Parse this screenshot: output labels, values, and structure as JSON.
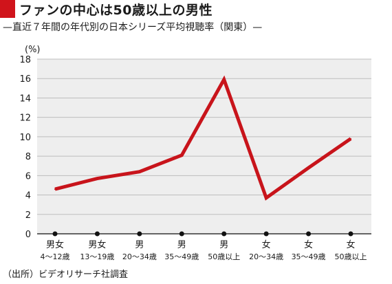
{
  "title": "ファンの中心は50歳以上の男性",
  "subtitle": "—直近７年間の年代別の日本シリーズ平均視聴率（関東）—",
  "source": "（出所）ビデオリサーチ社調査",
  "colors": {
    "accent": "#d0141b",
    "plot_bg": "#eeeeee",
    "line": "#c8141b"
  },
  "chart_data": {
    "type": "line",
    "title": "ファンの中心は50歳以上の男性",
    "subtitle": "—直近７年間の年代別の日本シリーズ平均視聴率（関東）—",
    "ylabel": "(%)",
    "ylim": [
      0,
      18
    ],
    "yticks": [
      0,
      2,
      4,
      6,
      8,
      10,
      12,
      14,
      16,
      18
    ],
    "grid": true,
    "categories": [
      {
        "gender": "男女",
        "age": "4〜12歳"
      },
      {
        "gender": "男女",
        "age": "13〜19歳"
      },
      {
        "gender": "男",
        "age": "20〜34歳"
      },
      {
        "gender": "男",
        "age": "35〜49歳"
      },
      {
        "gender": "男",
        "age": "50歳以上"
      },
      {
        "gender": "女",
        "age": "20〜34歳"
      },
      {
        "gender": "女",
        "age": "35〜49歳"
      },
      {
        "gender": "女",
        "age": "50歳以上"
      }
    ],
    "series": [
      {
        "values": [
          4.6,
          5.7,
          6.4,
          8.1,
          15.9,
          3.7,
          6.8,
          9.8
        ]
      }
    ]
  }
}
